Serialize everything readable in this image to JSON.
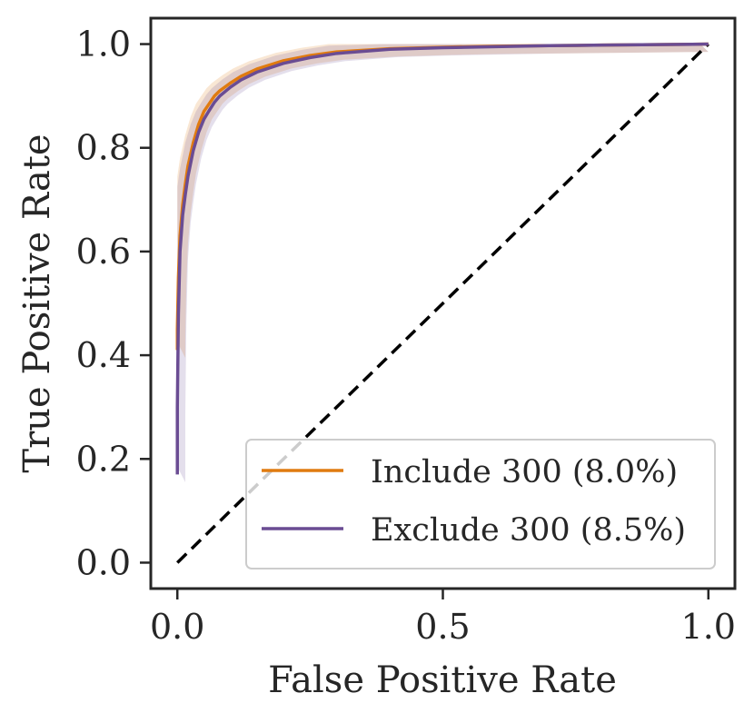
{
  "chart_data": {
    "type": "line",
    "title": "",
    "xlabel": "False Positive Rate",
    "ylabel": "True Positive Rate",
    "xlim": [
      -0.05,
      1.05
    ],
    "ylim": [
      -0.05,
      1.05
    ],
    "xticks": [
      {
        "value": 0.0,
        "label": "0.0"
      },
      {
        "value": 0.5,
        "label": "0.5"
      },
      {
        "value": 1.0,
        "label": "1.0"
      }
    ],
    "yticks": [
      {
        "value": 0.0,
        "label": "0.0"
      },
      {
        "value": 0.2,
        "label": "0.2"
      },
      {
        "value": 0.4,
        "label": "0.4"
      },
      {
        "value": 0.6,
        "label": "0.6"
      },
      {
        "value": 0.8,
        "label": "0.8"
      },
      {
        "value": 1.0,
        "label": "1.0"
      }
    ],
    "grid": false,
    "legend_position": "bottom-right",
    "series": [
      {
        "name": "Include 300 (8.0%)",
        "color": "#e07b10",
        "x": [
          0.0,
          0.0,
          0.002,
          0.005,
          0.01,
          0.015,
          0.02,
          0.03,
          0.04,
          0.05,
          0.06,
          0.07,
          0.08,
          0.1,
          0.12,
          0.15,
          0.2,
          0.25,
          0.3,
          0.4,
          0.5,
          0.6,
          0.7,
          0.8,
          0.9,
          1.0
        ],
        "y": [
          0.41,
          0.45,
          0.55,
          0.63,
          0.69,
          0.73,
          0.765,
          0.81,
          0.845,
          0.87,
          0.885,
          0.9,
          0.91,
          0.925,
          0.938,
          0.952,
          0.968,
          0.978,
          0.985,
          0.991,
          0.994,
          0.996,
          0.997,
          0.998,
          0.999,
          1.0
        ]
      },
      {
        "name": "Exclude 300 (8.5%)",
        "color": "#6a4c93",
        "x": [
          0.0,
          0.0,
          0.002,
          0.005,
          0.01,
          0.015,
          0.02,
          0.03,
          0.04,
          0.05,
          0.06,
          0.07,
          0.08,
          0.1,
          0.12,
          0.15,
          0.2,
          0.25,
          0.3,
          0.4,
          0.5,
          0.6,
          0.7,
          0.8,
          0.9,
          1.0
        ],
        "y": [
          0.17,
          0.3,
          0.48,
          0.6,
          0.67,
          0.71,
          0.745,
          0.795,
          0.83,
          0.855,
          0.872,
          0.888,
          0.9,
          0.917,
          0.931,
          0.946,
          0.963,
          0.974,
          0.982,
          0.99,
          0.993,
          0.995,
          0.997,
          0.998,
          0.999,
          1.0
        ]
      },
      {
        "name": "",
        "color": "#000000",
        "style": "dashed",
        "x": [
          0.0,
          1.0
        ],
        "y": [
          0.0,
          1.0
        ]
      }
    ]
  }
}
